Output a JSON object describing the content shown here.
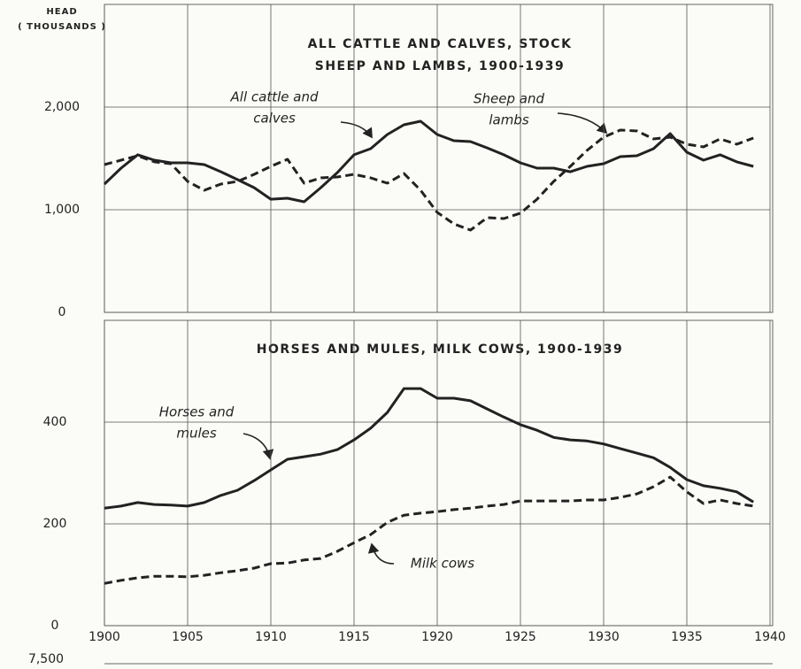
{
  "chart_data": [
    {
      "type": "line",
      "title": [
        "ALL CATTLE AND CALVES, STOCK",
        "SHEEP AND LAMBS, 1900-1939"
      ],
      "ylabel": [
        "HEAD",
        "( THOUSANDS )"
      ],
      "x": [
        1900,
        1901,
        1902,
        1903,
        1904,
        1905,
        1906,
        1907,
        1908,
        1909,
        1910,
        1911,
        1912,
        1913,
        1914,
        1915,
        1916,
        1917,
        1918,
        1919,
        1920,
        1921,
        1922,
        1923,
        1924,
        1925,
        1926,
        1927,
        1928,
        1929,
        1930,
        1931,
        1932,
        1933,
        1934,
        1935,
        1936,
        1937,
        1938,
        1939
      ],
      "xlim": [
        1900,
        1940
      ],
      "xticks": [
        1900,
        1905,
        1910,
        1915,
        1920,
        1925,
        1930,
        1935,
        1940
      ],
      "ylim": [
        0,
        3000
      ],
      "yticks": [
        0,
        {
          "value": 1000,
          "label": "1,000"
        },
        {
          "value": 2000,
          "label": "2,000"
        }
      ],
      "grid": true,
      "series": [
        {
          "name": [
            "All cattle and",
            "calves"
          ],
          "color": "#222222",
          "dash": false,
          "values": [
            1250,
            1405,
            1535,
            1483,
            1457,
            1457,
            1440,
            1370,
            1293,
            1215,
            1103,
            1112,
            1078,
            1215,
            1362,
            1535,
            1595,
            1733,
            1828,
            1862,
            1733,
            1672,
            1664,
            1603,
            1535,
            1457,
            1405,
            1405,
            1370,
            1422,
            1448,
            1517,
            1526,
            1595,
            1741,
            1560,
            1483,
            1535,
            1466,
            1422
          ]
        },
        {
          "name": [
            "Sheep and",
            "lambs"
          ],
          "color": "#222222",
          "dash": true,
          "values": [
            1440,
            1483,
            1526,
            1466,
            1448,
            1276,
            1190,
            1250,
            1276,
            1345,
            1422,
            1491,
            1259,
            1310,
            1319,
            1345,
            1310,
            1259,
            1353,
            1190,
            974,
            862,
            802,
            922,
            914,
            966,
            1103,
            1276,
            1422,
            1578,
            1707,
            1776,
            1767,
            1690,
            1707,
            1638,
            1612,
            1690,
            1638,
            1698
          ]
        }
      ]
    },
    {
      "type": "line",
      "title": [
        "HORSES AND MULES, MILK COWS, 1900-1939"
      ],
      "x": [
        1900,
        1901,
        1902,
        1903,
        1904,
        1905,
        1906,
        1907,
        1908,
        1909,
        1910,
        1911,
        1912,
        1913,
        1914,
        1915,
        1916,
        1917,
        1918,
        1919,
        1920,
        1921,
        1922,
        1923,
        1924,
        1925,
        1926,
        1927,
        1928,
        1929,
        1930,
        1931,
        1932,
        1933,
        1934,
        1935,
        1936,
        1937,
        1938,
        1939
      ],
      "xlim": [
        1900,
        1940
      ],
      "xticks": [
        1900,
        1905,
        1910,
        1915,
        1920,
        1925,
        1930,
        1935,
        1940
      ],
      "ylim": [
        0,
        600
      ],
      "yticks": [
        0,
        200,
        400
      ],
      "grid": true,
      "series": [
        {
          "name": [
            "Horses and",
            "mules"
          ],
          "color": "#222222",
          "dash": false,
          "values": [
            231,
            235,
            242,
            238,
            237,
            235,
            242,
            256,
            266,
            285,
            306,
            327,
            332,
            337,
            346,
            365,
            388,
            419,
            466,
            466,
            447,
            447,
            442,
            426,
            410,
            395,
            384,
            370,
            365,
            363,
            357,
            348,
            339,
            330,
            311,
            287,
            275,
            270,
            263,
            243
          ]
        },
        {
          "name": [
            "Milk cows"
          ],
          "color": "#222222",
          "dash": true,
          "values": [
            83,
            89,
            94,
            97,
            97,
            96,
            99,
            104,
            108,
            113,
            122,
            123,
            129,
            132,
            146,
            163,
            179,
            203,
            217,
            221,
            224,
            228,
            231,
            235,
            238,
            245,
            245,
            245,
            245,
            247,
            247,
            252,
            259,
            273,
            292,
            263,
            240,
            247,
            240,
            235
          ]
        }
      ]
    },
    {
      "type": "line",
      "yticks": [
        {
          "value": 7500,
          "label": "7,500"
        }
      ]
    }
  ]
}
